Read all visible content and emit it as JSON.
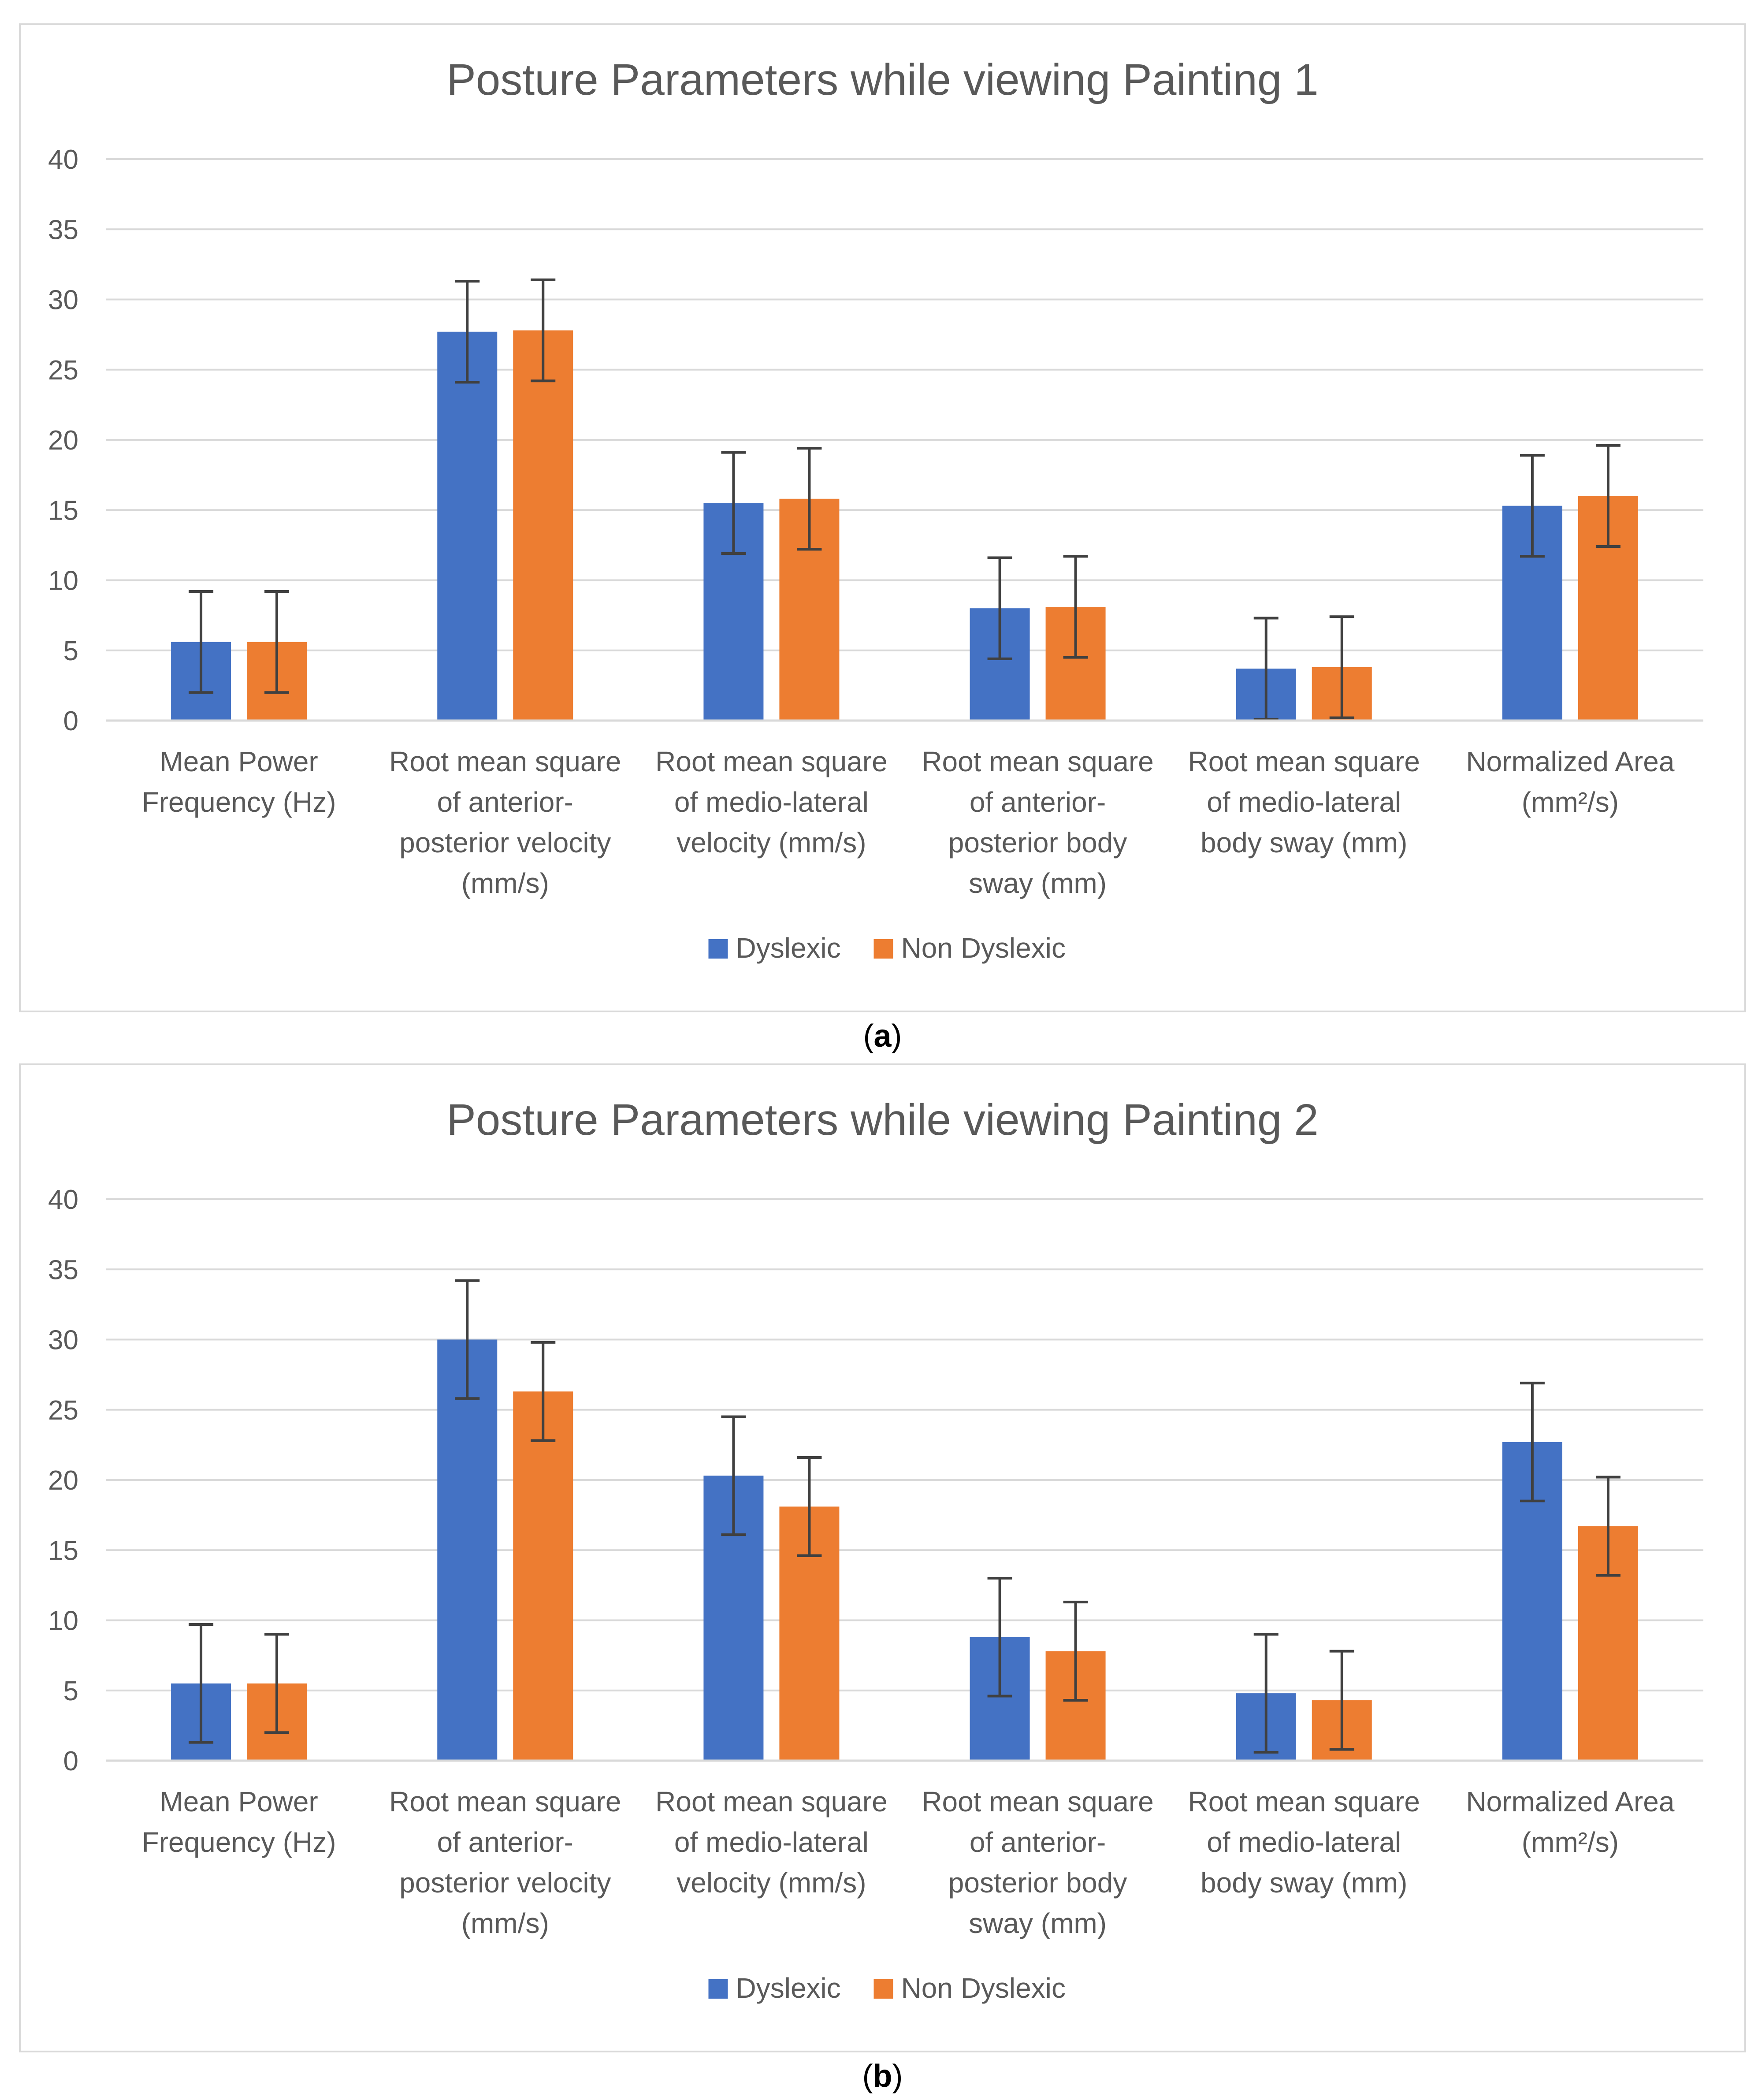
{
  "colors": {
    "dyslexic": "#4472C4",
    "non_dyslexic": "#ED7D31",
    "error_bar": "#404040",
    "grid": "#D9D9D9",
    "text": "#595959",
    "frame": "#D9D9D9"
  },
  "captions": [
    "a",
    "b"
  ],
  "chart_data": [
    {
      "type": "bar",
      "title": "Posture Parameters while viewing Painting 1",
      "xlabel": "",
      "ylabel": "",
      "ylim": [
        0,
        40
      ],
      "yticks": [
        "0",
        "5",
        "10",
        "15",
        "20",
        "25",
        "30",
        "35",
        "40"
      ],
      "grid": true,
      "legend_position": "bottom",
      "categories": [
        [
          "Mean Power",
          "Frequency (Hz)"
        ],
        [
          "Root mean square",
          "of anterior-",
          "posterior velocity",
          "(mm/s)"
        ],
        [
          "Root mean square",
          "of medio-lateral",
          "velocity (mm/s)"
        ],
        [
          "Root mean square",
          "of anterior-",
          "posterior body",
          "sway (mm)"
        ],
        [
          "Root mean square",
          "of medio-lateral",
          "body sway (mm)"
        ],
        [
          "Normalized Area",
          "(mm²/s)"
        ]
      ],
      "series": [
        {
          "name": "Dyslexic",
          "values": [
            5.6,
            27.7,
            15.5,
            8.0,
            3.7,
            15.3
          ],
          "errors": [
            3.6,
            3.6,
            3.6,
            3.6,
            3.6,
            3.6
          ]
        },
        {
          "name": "Non Dyslexic",
          "values": [
            5.6,
            27.8,
            15.8,
            8.1,
            3.8,
            16.0
          ],
          "errors": [
            3.6,
            3.6,
            3.6,
            3.6,
            3.6,
            3.6
          ]
        }
      ]
    },
    {
      "type": "bar",
      "title": "Posture Parameters while viewing Painting 2",
      "xlabel": "",
      "ylabel": "",
      "ylim": [
        0,
        40
      ],
      "yticks": [
        "0",
        "5",
        "10",
        "15",
        "20",
        "25",
        "30",
        "35",
        "40"
      ],
      "grid": true,
      "legend_position": "bottom",
      "categories": [
        [
          "Mean Power",
          "Frequency (Hz)"
        ],
        [
          "Root mean square",
          "of anterior-",
          "posterior velocity",
          "(mm/s)"
        ],
        [
          "Root mean square",
          "of medio-lateral",
          "velocity (mm/s)"
        ],
        [
          "Root mean square",
          "of anterior-",
          "posterior body",
          "sway (mm)"
        ],
        [
          "Root mean square",
          "of medio-lateral",
          "body sway (mm)"
        ],
        [
          "Normalized Area",
          "(mm²/s)"
        ]
      ],
      "series": [
        {
          "name": "Dyslexic",
          "values": [
            5.5,
            30.0,
            20.3,
            8.8,
            4.8,
            22.7
          ],
          "errors": [
            4.2,
            4.2,
            4.2,
            4.2,
            4.2,
            4.2
          ]
        },
        {
          "name": "Non Dyslexic",
          "values": [
            5.5,
            26.3,
            18.1,
            7.8,
            4.3,
            16.7
          ],
          "errors": [
            3.5,
            3.5,
            3.5,
            3.5,
            3.5,
            3.5
          ]
        }
      ]
    }
  ]
}
